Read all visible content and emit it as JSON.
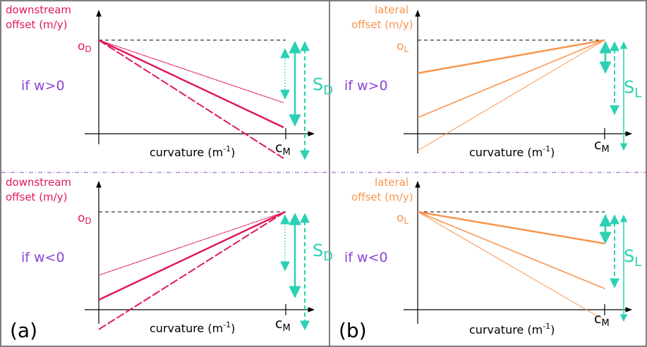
{
  "panel_labels": {
    "a": "(a)",
    "b": "(b)"
  },
  "axis": {
    "x_label": "curvature (m",
    "x_label_exp": "-1",
    "x_label_end": ")",
    "cm_main": "c",
    "cm_sub": "M"
  },
  "panel_a": {
    "y_label_line1": "downstream",
    "y_label_line2": "offset (m/y)",
    "offset_main": "o",
    "offset_sub": "D",
    "s_main": "S",
    "s_sub": "D",
    "condition_top": "if w>0",
    "condition_bottom": "if w<0"
  },
  "panel_b": {
    "y_label_line1": "lateral",
    "y_label_line2": "offset (m/y)",
    "offset_main": "o",
    "offset_sub": "L",
    "s_main": "S",
    "s_sub": "L",
    "condition_top": "if w>0",
    "condition_bottom": "if w<0"
  },
  "colors": {
    "downstream": "#e0195a",
    "lateral": "#f7954e",
    "arrow": "#2ad1b4",
    "condition": "#8a44d6",
    "divider": "#8a44d6",
    "frame": "#555555"
  }
}
